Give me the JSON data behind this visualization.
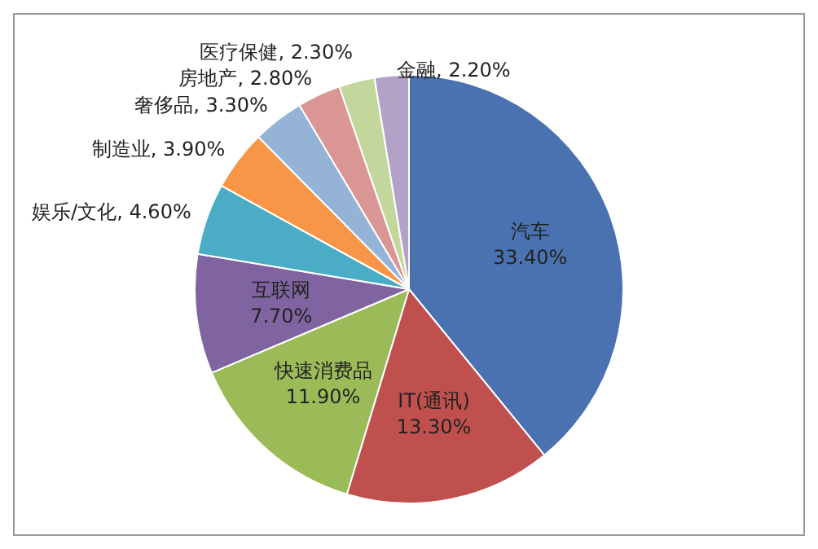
{
  "chart_data": {
    "type": "pie",
    "categories": [
      "汽车",
      "IT(通讯)",
      "快速消费品",
      "互联网",
      "娱乐/文化",
      "制造业",
      "奢侈品",
      "房地产",
      "医疗保健",
      "金融"
    ],
    "values": [
      33.4,
      13.3,
      11.9,
      7.7,
      4.6,
      3.9,
      3.3,
      2.8,
      2.3,
      2.2
    ],
    "value_labels": [
      "33.40%",
      "13.30%",
      "11.90%",
      "7.70%",
      "4.60%",
      "3.90%",
      "3.30%",
      "2.80%",
      "2.30%",
      "2.20%"
    ],
    "colors": [
      "#4a72b0",
      "#c0504d",
      "#9bbb59",
      "#8064a2",
      "#4bacc6",
      "#f79646",
      "#95b3d7",
      "#da9694",
      "#c3d69b",
      "#b3a2c7"
    ],
    "legend": false
  }
}
